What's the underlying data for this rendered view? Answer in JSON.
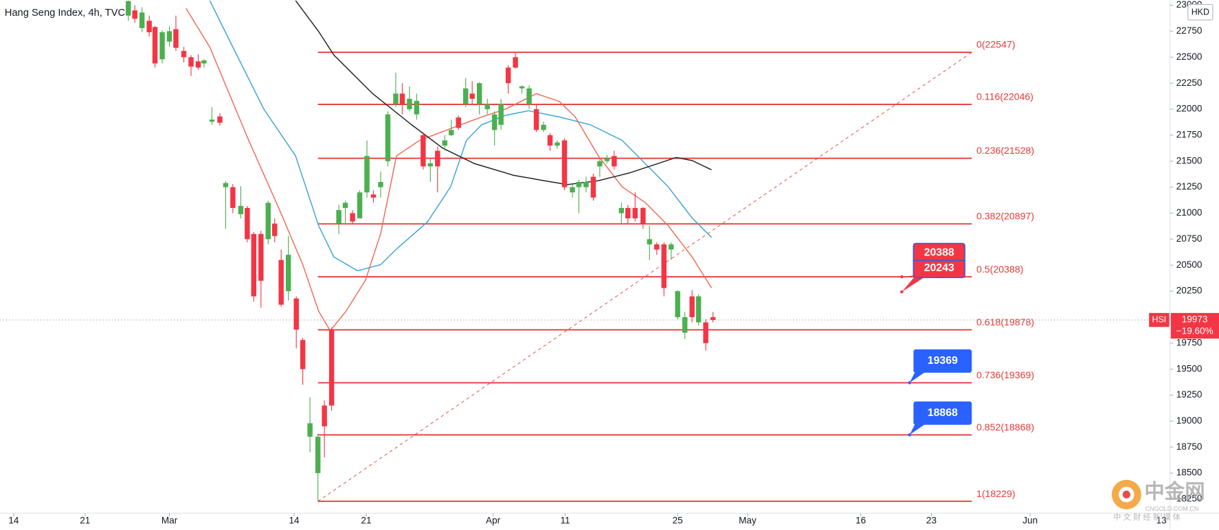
{
  "chart_data": {
    "type": "candlestick",
    "title": "Hang Seng Index, 4h, TVC",
    "currency": "HKD",
    "up_color": "#4caf50",
    "down_color": "#f23645",
    "xlim": [
      -1.9,
      160.4
    ],
    "ylim": [
      18115,
      23045
    ],
    "xticks": [
      {
        "value": 0,
        "label": "14"
      },
      {
        "value": 9.9,
        "label": "21"
      },
      {
        "value": 21.6,
        "label": "Mar"
      },
      {
        "value": 38.9,
        "label": "14"
      },
      {
        "value": 48.9,
        "label": "21"
      },
      {
        "value": 66.5,
        "label": "Apr"
      },
      {
        "value": 76.5,
        "label": "11"
      },
      {
        "value": 92.1,
        "label": "25"
      },
      {
        "value": 101.8,
        "label": "May"
      },
      {
        "value": 117.5,
        "label": "16"
      },
      {
        "value": 127.3,
        "label": "23"
      },
      {
        "value": 141.0,
        "label": "Jun"
      },
      {
        "value": 159.2,
        "label": "13"
      }
    ],
    "yticks": [
      18250,
      18500,
      18750,
      19000,
      19250,
      19500,
      19750,
      20000,
      20250,
      20500,
      20750,
      21000,
      21250,
      21500,
      21750,
      22000,
      22250,
      22500,
      22750,
      23000
    ],
    "grid": false,
    "x": [
      15.9,
      16.8,
      17.8,
      18.8,
      19.6,
      20.6,
      21.6,
      22.5,
      23.6,
      24.6,
      25.6,
      26.4,
      27.5,
      28.6,
      29.4,
      30.4,
      31.5,
      32.4,
      33.3,
      34.3,
      35.3,
      36.2,
      37.1,
      38.1,
      39.2,
      40.1,
      41.1,
      42.2,
      43.1,
      44.1,
      45.1,
      46.0,
      47.0,
      48.0,
      49.0,
      49.9,
      50.9,
      51.9,
      53.0,
      53.9,
      54.9,
      55.9,
      56.8,
      57.8,
      58.8,
      59.8,
      60.7,
      61.7,
      62.7,
      63.6,
      64.6,
      65.7,
      66.7,
      67.6,
      68.6,
      69.6,
      70.5,
      71.5,
      72.5,
      73.5,
      74.4,
      75.4,
      76.4,
      77.5,
      78.4,
      79.4,
      80.4,
      81.3,
      82.3,
      83.3,
      84.3,
      85.2,
      86.2,
      87.3,
      88.2,
      89.2,
      90.2,
      91.2,
      92.1,
      93.1,
      94.1,
      95.0,
      96.0,
      97.0
    ],
    "open": [
      22900,
      22950,
      22780,
      22850,
      22790,
      22480,
      22650,
      22770,
      22560,
      22500,
      22460,
      22440,
      21880,
      21930,
      21250,
      21250,
      20990,
      21050,
      20800,
      20800,
      20750,
      20900,
      20550,
      20250,
      20180,
      19780,
      18850,
      18500,
      19150,
      19880,
      20900,
      21050,
      21000,
      20950,
      21200,
      21180,
      21250,
      21500,
      22050,
      22150,
      22000,
      21950,
      21750,
      21450,
      21600,
      21650,
      21750,
      21920,
      22050,
      22150,
      22050,
      22000,
      21800,
      21850,
      22400,
      22500,
      22200,
      22050,
      22000,
      21800,
      21750,
      21650,
      21700,
      21200,
      21250,
      21250,
      21350,
      21450,
      21500,
      21550,
      21000,
      21050,
      21050,
      21050,
      20700,
      20700,
      20700,
      20650,
      20000,
      19850,
      20200,
      19950,
      19950,
      20000
    ],
    "high": [
      23045,
      23000,
      22980,
      22900,
      22800,
      22760,
      22800,
      22900,
      22600,
      22520,
      22530,
      22480,
      22020,
      21960,
      21310,
      21280,
      21260,
      21070,
      20820,
      20830,
      21120,
      20950,
      20650,
      20780,
      20200,
      19800,
      19230,
      18880,
      19200,
      19900,
      21080,
      21120,
      21030,
      21220,
      21700,
      21220,
      21400,
      21980,
      22350,
      22250,
      22220,
      22150,
      21780,
      21520,
      21640,
      21750,
      21900,
      21940,
      22300,
      22270,
      22260,
      22100,
      21980,
      22100,
      22420,
      22547,
      22230,
      22230,
      22050,
      21880,
      21770,
      21700,
      21720,
      21280,
      21320,
      21350,
      21380,
      21520,
      21560,
      21600,
      21100,
      21080,
      21200,
      21060,
      20880,
      20720,
      20720,
      20720,
      20260,
      20050,
      20260,
      20220,
      19980,
      20050
    ],
    "low": [
      22850,
      22830,
      22740,
      22700,
      22400,
      22440,
      22600,
      22560,
      22450,
      22320,
      22380,
      22400,
      21850,
      21840,
      20850,
      21000,
      20950,
      20720,
      20150,
      20090,
      20700,
      20720,
      20100,
      20160,
      19700,
      19350,
      18700,
      18229,
      18650,
      19100,
      20800,
      20890,
      20900,
      20950,
      21150,
      21100,
      21150,
      21450,
      22020,
      21950,
      21980,
      21900,
      21420,
      21300,
      21200,
      21600,
      21740,
      21800,
      22020,
      22050,
      21950,
      21950,
      21650,
      21800,
      22150,
      22390,
      22150,
      22000,
      21780,
      21780,
      21600,
      21620,
      21220,
      21150,
      21000,
      21200,
      21120,
      21350,
      21480,
      21420,
      20900,
      20900,
      20920,
      20850,
      20550,
      20600,
      20200,
      20550,
      19980,
      19790,
      19950,
      19920,
      19680,
      19950
    ],
    "close": [
      23040,
      22870,
      22930,
      22740,
      22440,
      22740,
      22750,
      22590,
      22500,
      22410,
      22400,
      22470,
      21900,
      21870,
      21290,
      21050,
      21070,
      20750,
      20200,
      20350,
      21100,
      20780,
      20120,
      20600,
      19880,
      19500,
      18980,
      18850,
      18950,
      19150,
      21030,
      21100,
      20920,
      21200,
      21550,
      21150,
      21300,
      21950,
      22150,
      22050,
      22100,
      22080,
      21450,
      21480,
      21450,
      21700,
      21800,
      21820,
      22200,
      22100,
      22250,
      22050,
      21950,
      22050,
      22250,
      22400,
      22220,
      22200,
      21800,
      21850,
      21650,
      21680,
      21250,
      21250,
      21300,
      21300,
      21150,
      21500,
      21530,
      21450,
      21050,
      20950,
      20950,
      20900,
      20750,
      20650,
      20280,
      20700,
      20250,
      20000,
      20000,
      20200,
      19750,
      19973
    ],
    "moving_averages": [
      {
        "color": "#ef6a55",
        "x": [
          23.9,
          27.2,
          32.6,
          36.9,
          40.1,
          42.3,
          43.9,
          46.1,
          48.8,
          50.9,
          53.1,
          56.3,
          60.6,
          64.9,
          68.2,
          72.5,
          75.7,
          77.9,
          81.1,
          84.4,
          87.6,
          90.8,
          94.1,
          96.8
        ],
        "values": [
          22970,
          22597,
          21700,
          21028,
          20505,
          20057,
          19870,
          20057,
          20356,
          20804,
          21551,
          21700,
          21813,
          21925,
          22000,
          22149,
          22074,
          21925,
          21551,
          21253,
          21103,
          20879,
          20580,
          20281
        ]
      },
      {
        "color": "#3ea3d6",
        "x": [
          27.2,
          30.4,
          34.7,
          39.1,
          42.3,
          44.4,
          47.7,
          50.9,
          53.1,
          57.4,
          60.6,
          62.8,
          64.9,
          68.2,
          71.4,
          75.7,
          80.0,
          84.4,
          87.6,
          90.8,
          94.1,
          96.8
        ],
        "values": [
          23045,
          22597,
          22000,
          21551,
          20879,
          20580,
          20446,
          20505,
          20655,
          20916,
          21253,
          21700,
          21850,
          21940,
          21985,
          21925,
          21850,
          21700,
          21477,
          21253,
          20954,
          20767
        ]
      },
      {
        "color": "#222222",
        "x": [
          39.1,
          42.3,
          44.4,
          49.8,
          55.2,
          59.5,
          63.9,
          69.3,
          73.6,
          76.8,
          81.1,
          85.4,
          88.7,
          91.9,
          94.1,
          96.8
        ],
        "values": [
          23045,
          22747,
          22522,
          22149,
          21850,
          21626,
          21477,
          21365,
          21312,
          21275,
          21312,
          21387,
          21462,
          21536,
          21506,
          21417
        ]
      }
    ],
    "fib_color": "#e53935",
    "fib_x": [
      42.2,
      132.9
    ],
    "fib_levels": [
      {
        "label": "0(22547)",
        "value": 22547
      },
      {
        "label": "0.116(22046)",
        "value": 22046
      },
      {
        "label": "0.236(21528)",
        "value": 21528
      },
      {
        "label": "0.382(20897)",
        "value": 20897
      },
      {
        "label": "0.5(20388)",
        "value": 20388
      },
      {
        "label": "0.618(19878)",
        "value": 19878
      },
      {
        "label": "0.736(19369)",
        "value": 19369
      },
      {
        "label": "0.852(18868)",
        "value": 18868
      },
      {
        "label": "1(18229)",
        "value": 18229
      }
    ],
    "trendline": {
      "x": [
        42.2,
        132.9
      ],
      "values": [
        18229,
        22547
      ]
    },
    "annotations": [
      {
        "labels": [
          "20388",
          "20243"
        ],
        "values": [
          20388,
          20243
        ],
        "color": "#f23645"
      },
      {
        "labels": [
          "19369"
        ],
        "values": [
          19369
        ],
        "color": "#2962ff"
      },
      {
        "labels": [
          "18868"
        ],
        "values": [
          18868
        ],
        "color": "#2962ff"
      }
    ],
    "last_price": {
      "symbol": "HSI",
      "value": 19973,
      "change": "−19.60%"
    }
  },
  "watermark": {
    "name": "中金网",
    "site": "CNGOLD.COM.CN",
    "tagline": "中 文 财 经 新 媒 体"
  }
}
